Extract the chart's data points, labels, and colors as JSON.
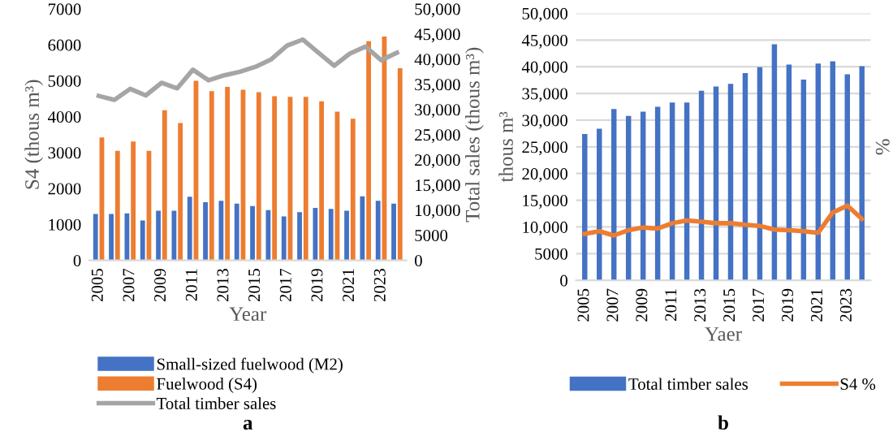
{
  "chart_data": [
    {
      "type": "bar",
      "xlabel": "Year",
      "ylabel": "S4 (thous m³)",
      "y2label": "Total sales (thous m³)",
      "categories": [
        "2005",
        null,
        "2007",
        null,
        "2009",
        null,
        "2011",
        null,
        "2013",
        null,
        "2015",
        null,
        "2017",
        null,
        "2019",
        null,
        "2021",
        null,
        "2023",
        null
      ],
      "series": [
        {
          "name": "Small-sized fuelwood (M2)",
          "color": "#4472c4",
          "values": [
            1290,
            1290,
            1310,
            1110,
            1380,
            1380,
            1770,
            1620,
            1660,
            1580,
            1510,
            1400,
            1220,
            1340,
            1460,
            1430,
            1380,
            1780,
            1660,
            1580
          ]
        },
        {
          "name": "Fuelwood (S4)",
          "color": "#ed7d31",
          "values": [
            3420,
            3050,
            3310,
            3050,
            4180,
            3820,
            5000,
            4710,
            4830,
            4750,
            4680,
            4570,
            4550,
            4550,
            4430,
            4140,
            3940,
            6100,
            6230,
            5350
          ]
        },
        {
          "name": "Total timber sales",
          "type": "line",
          "axis": "y2",
          "color": "#a5a5a5",
          "values": [
            32700,
            31900,
            34100,
            32800,
            35300,
            34200,
            37900,
            35800,
            36800,
            37500,
            38500,
            40000,
            42700,
            43900,
            41300,
            38700,
            41100,
            42500,
            39800,
            41300
          ]
        }
      ],
      "ylim": [
        0,
        7000
      ],
      "yticks": [
        0,
        1000,
        2000,
        3000,
        4000,
        5000,
        6000,
        7000
      ],
      "y2lim": [
        0,
        50000
      ],
      "y2ticks": [
        0,
        5000,
        {
          "value": 10000,
          "label": "10,000"
        },
        {
          "value": 15000,
          "label": "15,000"
        },
        {
          "value": 20000,
          "label": "20,000"
        },
        {
          "value": 25000,
          "label": "25,000"
        },
        {
          "value": 30000,
          "label": "30,000"
        },
        {
          "value": 35000,
          "label": "35,000"
        },
        {
          "value": 40000,
          "label": "40,000"
        },
        {
          "value": 45000,
          "label": "45,000"
        },
        {
          "value": 50000,
          "label": "50,000"
        }
      ],
      "grid": false,
      "legend": "bottom",
      "marker": "none",
      "annotations": [
        "a"
      ]
    },
    {
      "type": "bar",
      "xlabel": "Yaer",
      "ylabel": "thous m³",
      "y2label": "%",
      "categories": [
        "2005",
        null,
        "2007",
        null,
        "2009",
        null,
        "2011",
        null,
        "2013",
        null,
        "2015",
        null,
        "2017",
        null,
        "2019",
        null,
        "2021",
        null,
        "2023",
        null
      ],
      "series": [
        {
          "name": "Total timber sales",
          "color": "#4472c4",
          "values": [
            27400,
            28400,
            32100,
            30800,
            31600,
            32500,
            33300,
            33300,
            35500,
            36300,
            36800,
            38800,
            39900,
            44200,
            40400,
            37600,
            40600,
            41000,
            38600,
            40100
          ]
        },
        {
          "name": "S4 %",
          "type": "line",
          "color": "#ed7d31",
          "values": [
            8700,
            9200,
            8400,
            9400,
            9900,
            9700,
            10700,
            11200,
            11000,
            10700,
            10700,
            10400,
            10200,
            9500,
            9400,
            9200,
            8900,
            12700,
            14000,
            11500
          ]
        }
      ],
      "ylim": [
        0,
        50000
      ],
      "yticks": [
        0,
        5000,
        {
          "value": 10000,
          "label": "10,000"
        },
        {
          "value": 15000,
          "label": "15,000"
        },
        {
          "value": 20000,
          "label": "20,000"
        },
        {
          "value": 25000,
          "label": "25,000"
        },
        {
          "value": 30000,
          "label": "30,000"
        },
        {
          "value": 35000,
          "label": "35,000"
        },
        {
          "value": 40000,
          "label": "40,000"
        },
        {
          "value": 45000,
          "label": "45,000"
        },
        {
          "value": 50000,
          "label": "50,000"
        }
      ],
      "grid": "y",
      "legend": "bottom",
      "marker": "none",
      "annotations": [
        "b"
      ]
    }
  ]
}
